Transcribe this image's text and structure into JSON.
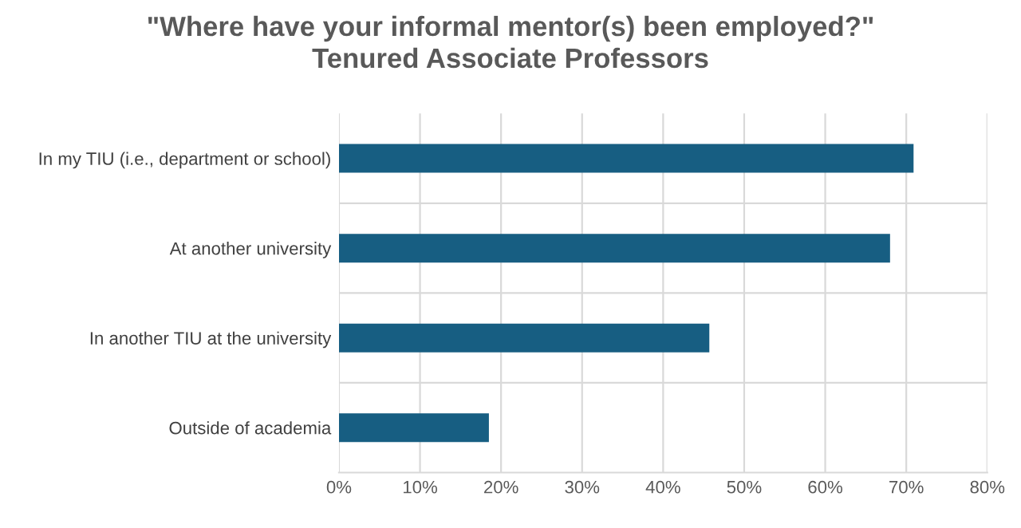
{
  "chart_data": {
    "type": "bar",
    "orientation": "horizontal",
    "title": "\"Where have your informal mentor(s) been employed?\"\nTenured Associate Professors",
    "categories": [
      "In my TIU (i.e., department or school)",
      "At another university",
      "In another TIU at the university",
      "Outside of academia"
    ],
    "values": [
      70.9,
      68.0,
      45.7,
      18.5
    ],
    "color": "#175e82",
    "xlim": [
      0,
      80
    ],
    "xticks": [
      {
        "value": 0,
        "label": "0%"
      },
      {
        "value": 10,
        "label": "10%"
      },
      {
        "value": 20,
        "label": "20%"
      },
      {
        "value": 30,
        "label": "30%"
      },
      {
        "value": 40,
        "label": "40%"
      },
      {
        "value": 50,
        "label": "50%"
      },
      {
        "value": 60,
        "label": "60%"
      },
      {
        "value": 70,
        "label": "70%"
      },
      {
        "value": 80,
        "label": "80%"
      }
    ],
    "grid": true,
    "legend": false
  }
}
